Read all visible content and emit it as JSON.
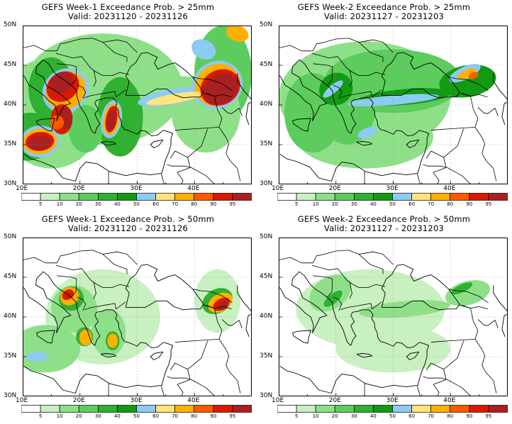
{
  "panels": [
    {
      "title1": "GEFS Week-1 Exceedance Prob. > 25mm",
      "title2": "Valid: 20231120 - 20231126"
    },
    {
      "title1": "GEFS Week-2 Exceedance Prob. > 25mm",
      "title2": "Valid: 20231127 - 20231203"
    },
    {
      "title1": "GEFS Week-1 Exceedance Prob. > 50mm",
      "title2": "Valid: 20231120 - 20231126"
    },
    {
      "title1": "GEFS Week-2 Exceedance Prob. > 50mm",
      "title2": "Valid: 20231127 - 20231203"
    }
  ],
  "axes": {
    "lat_labels": [
      "50N",
      "45N",
      "40N",
      "35N",
      "30N"
    ],
    "lon_labels": [
      "10E",
      "20E",
      "30E",
      "40E"
    ]
  },
  "colorbar": {
    "levels": [
      "5",
      "10",
      "20",
      "30",
      "40",
      "50",
      "60",
      "70",
      "80",
      "90",
      "95"
    ],
    "colors": [
      "#ffffff",
      "#c8f0c0",
      "#8ee088",
      "#5ccc5c",
      "#30b030",
      "#129a12",
      "#8ccbf2",
      "#ffe57a",
      "#ffb000",
      "#ff5a00",
      "#d91a00",
      "#a82020"
    ]
  }
}
